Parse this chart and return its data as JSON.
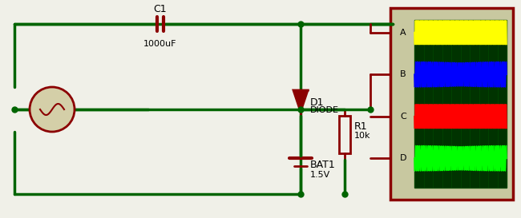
{
  "bg_color": "#f0f0e8",
  "wire_color": "#006400",
  "component_color": "#8b0000",
  "border_color": "#8b0000",
  "scope_bg": "#003300",
  "scope_border": "#8b0000",
  "scope_box_color": "#c8c8a0",
  "title": "",
  "wire_lw": 2.5,
  "comp_lw": 2.0,
  "labels": {
    "C1": "C1",
    "C1_val": "1000uF",
    "D1": "D1",
    "D1_val": "DIODE",
    "R1": "R1",
    "R1_val": "10k",
    "BAT1": "BAT1",
    "BAT1_val": "1.5V",
    "scope_A": "A",
    "scope_B": "B",
    "scope_C": "C",
    "scope_D": "D"
  }
}
